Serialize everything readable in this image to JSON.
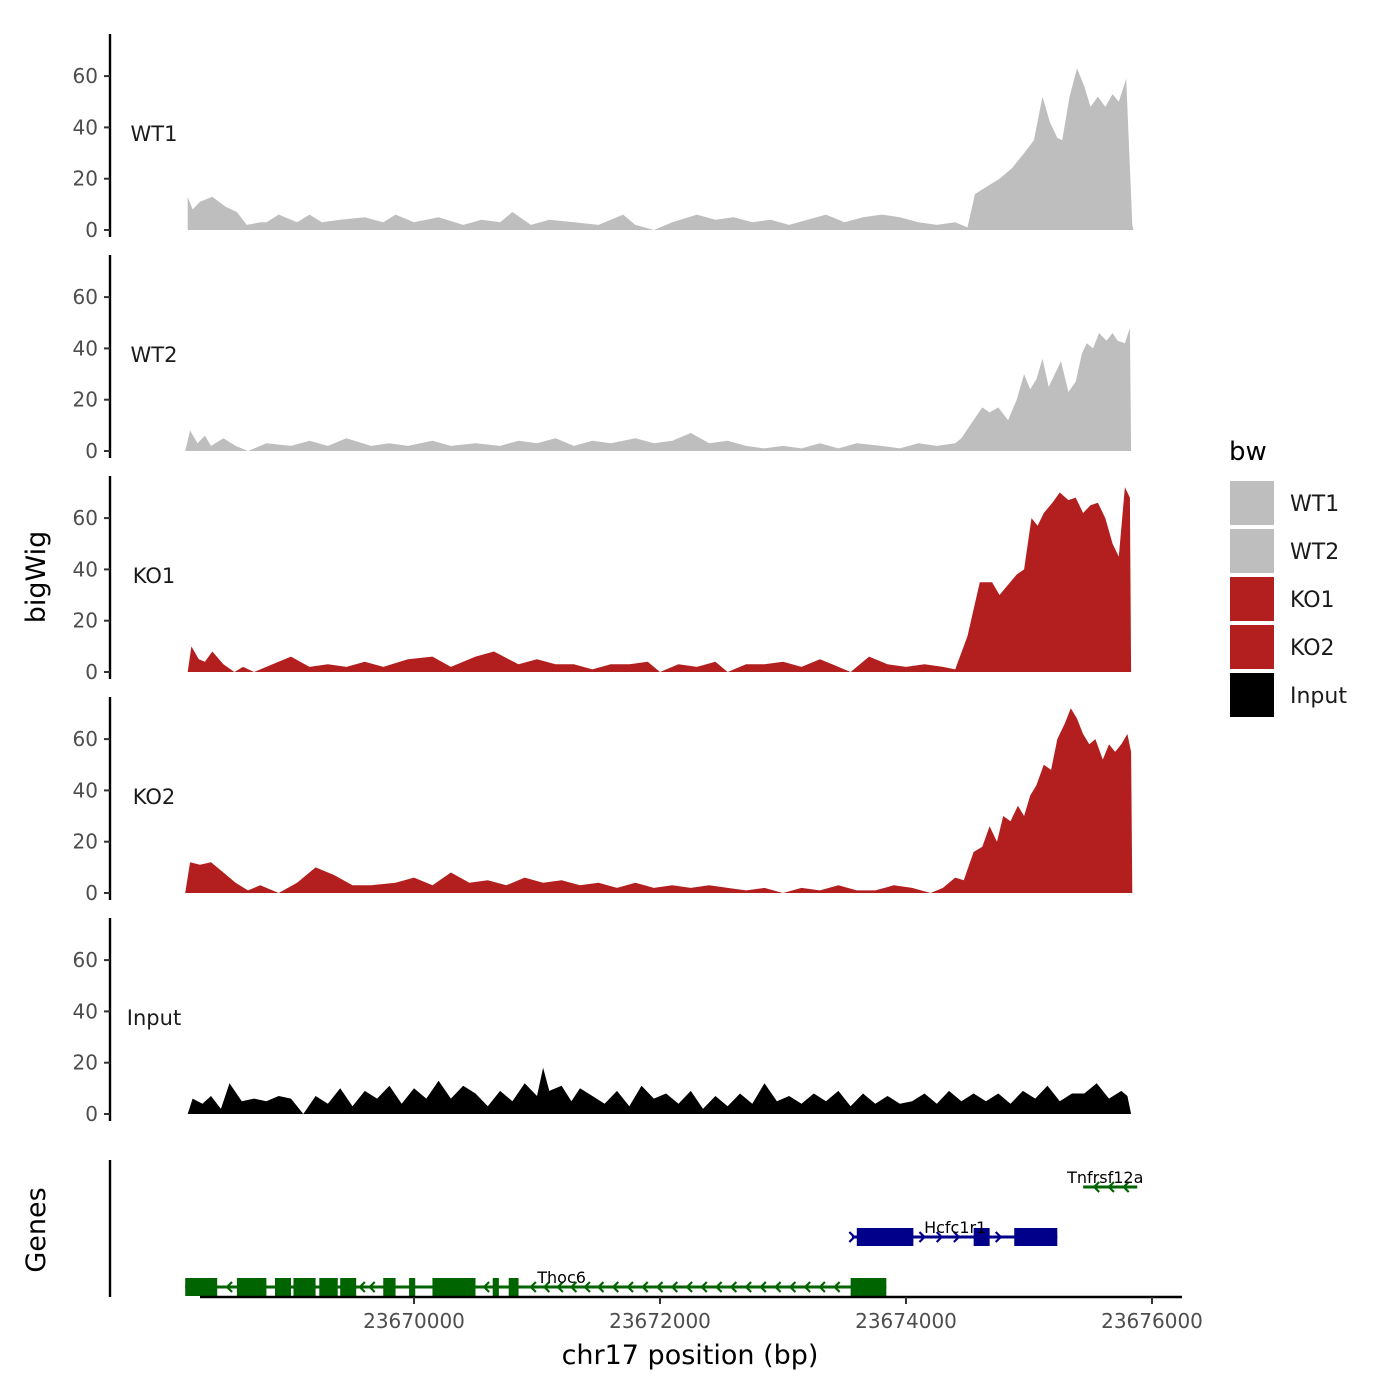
{
  "chart_data": {
    "type": "area",
    "chromosome": "chr17",
    "xlabel": "chr17 position (bp)",
    "ylabel": "bigWig",
    "genes_label": "Genes",
    "xlim": [
      23667800,
      23676250
    ],
    "x_ticks": [
      23670000,
      23672000,
      23674000,
      23676000
    ],
    "x_tick_labels": [
      "23670000",
      "23672000",
      "23674000",
      "23676000"
    ],
    "ylim": [
      0,
      77
    ],
    "y_ticks": [
      0,
      20,
      40,
      60
    ],
    "y_tick_labels": [
      "0",
      "20",
      "40",
      "60"
    ],
    "tracks": [
      {
        "name": "WT1",
        "color": "#BEBEBE",
        "x": [
          23668160,
          23668200,
          23668260,
          23668360,
          23668470,
          23668560,
          23668640,
          23668750,
          23668800,
          23668900,
          23669050,
          23669150,
          23669250,
          23669400,
          23669600,
          23669750,
          23669850,
          23670000,
          23670200,
          23670400,
          23670550,
          23670700,
          23670800,
          23670950,
          23671100,
          23671300,
          23671500,
          23671700,
          23671800,
          23671950,
          23672100,
          23672300,
          23672450,
          23672600,
          23672750,
          23672900,
          23673050,
          23673200,
          23673350,
          23673500,
          23673650,
          23673800,
          23673950,
          23674100,
          23674250,
          23674400,
          23674450,
          23674500,
          23674560,
          23674660,
          23674760,
          23674860,
          23674960,
          23675040,
          23675110,
          23675170,
          23675230,
          23675270,
          23675330,
          23675390,
          23675450,
          23675500,
          23675560,
          23675620,
          23675680,
          23675730,
          23675790,
          23675840,
          23675850
        ],
        "y": [
          13,
          8,
          11,
          13,
          9,
          7,
          2,
          3,
          3,
          6,
          3,
          6,
          3,
          4,
          5,
          3,
          6,
          3,
          5,
          2,
          4,
          3,
          7,
          2,
          4,
          3,
          2,
          6,
          2,
          0,
          3,
          6,
          4,
          5,
          3,
          4,
          2,
          4,
          6,
          3,
          5,
          6,
          5,
          3,
          2,
          3,
          2,
          1,
          14,
          17,
          20,
          24,
          30,
          35,
          52,
          42,
          36,
          35,
          52,
          63,
          56,
          48,
          52,
          48,
          53,
          50,
          59,
          2,
          0
        ]
      },
      {
        "name": "WT2",
        "color": "#BEBEBE",
        "x": [
          23668140,
          23668180,
          23668240,
          23668300,
          23668350,
          23668450,
          23668550,
          23668650,
          23668800,
          23669000,
          23669150,
          23669300,
          23669450,
          23669650,
          23669800,
          23669950,
          23670150,
          23670300,
          23670500,
          23670700,
          23670850,
          23671000,
          23671150,
          23671300,
          23671450,
          23671600,
          23671800,
          23671950,
          23672100,
          23672250,
          23672400,
          23672550,
          23672700,
          23672850,
          23673000,
          23673150,
          23673300,
          23673450,
          23673600,
          23673800,
          23673950,
          23674100,
          23674250,
          23674400,
          23674450,
          23674520,
          23674620,
          23674680,
          23674750,
          23674830,
          23674900,
          23674960,
          23675010,
          23675060,
          23675110,
          23675160,
          23675210,
          23675260,
          23675320,
          23675380,
          23675430,
          23675470,
          23675520,
          23675570,
          23675630,
          23675680,
          23675720,
          23675780,
          23675820,
          23675830
        ],
        "y": [
          0,
          8,
          3,
          6,
          2,
          5,
          2,
          0,
          3,
          2,
          4,
          2,
          5,
          2,
          3,
          2,
          4,
          2,
          3,
          2,
          4,
          3,
          5,
          2,
          4,
          3,
          5,
          3,
          4,
          7,
          3,
          4,
          2,
          1,
          2,
          1,
          3,
          1,
          3,
          2,
          1,
          3,
          2,
          3,
          5,
          10,
          17,
          15,
          17,
          12,
          20,
          30,
          24,
          28,
          36,
          25,
          30,
          35,
          23,
          27,
          38,
          42,
          40,
          46,
          43,
          46,
          43,
          42,
          48,
          0
        ]
      },
      {
        "name": "KO1",
        "color": "#B31E1E",
        "x": [
          23668160,
          23668190,
          23668250,
          23668300,
          23668360,
          23668450,
          23668540,
          23668610,
          23668700,
          23668850,
          23669000,
          23669150,
          23669300,
          23669450,
          23669600,
          23669750,
          23669950,
          23670150,
          23670300,
          23670500,
          23670650,
          23670850,
          23671000,
          23671150,
          23671300,
          23671450,
          23671600,
          23671750,
          23671900,
          23672000,
          23672150,
          23672300,
          23672450,
          23672550,
          23672700,
          23672850,
          23673000,
          23673150,
          23673300,
          23673400,
          23673550,
          23673700,
          23673850,
          23674000,
          23674150,
          23674300,
          23674400,
          23674500,
          23674600,
          23674700,
          23674760,
          23674830,
          23674900,
          23674960,
          23675020,
          23675070,
          23675120,
          23675190,
          23675250,
          23675320,
          23675380,
          23675440,
          23675500,
          23675560,
          23675620,
          23675680,
          23675730,
          23675780,
          23675820,
          23675830
        ],
        "y": [
          0,
          10,
          5,
          4,
          8,
          3,
          0,
          2,
          0,
          3,
          6,
          2,
          3,
          2,
          4,
          2,
          5,
          6,
          2,
          6,
          8,
          3,
          5,
          3,
          3,
          1,
          3,
          3,
          4,
          0,
          3,
          2,
          4,
          0,
          3,
          3,
          4,
          2,
          5,
          3,
          0,
          6,
          3,
          2,
          3,
          2,
          1,
          14,
          35,
          35,
          30,
          34,
          38,
          40,
          60,
          57,
          62,
          66,
          70,
          67,
          68,
          62,
          65,
          66,
          60,
          50,
          45,
          72,
          68,
          0
        ]
      },
      {
        "name": "KO2",
        "color": "#B31E1E",
        "x": [
          23668140,
          23668180,
          23668260,
          23668350,
          23668450,
          23668550,
          23668650,
          23668750,
          23668900,
          23669050,
          23669200,
          23669350,
          23669500,
          23669650,
          23669850,
          23670000,
          23670150,
          23670300,
          23670450,
          23670600,
          23670750,
          23670900,
          23671050,
          23671200,
          23671350,
          23671500,
          23671650,
          23671800,
          23671950,
          23672100,
          23672250,
          23672400,
          23672550,
          23672700,
          23672850,
          23673000,
          23673150,
          23673300,
          23673450,
          23673600,
          23673750,
          23673900,
          23674050,
          23674200,
          23674300,
          23674400,
          23674470,
          23674550,
          23674620,
          23674680,
          23674740,
          23674790,
          23674850,
          23674910,
          23674960,
          23675010,
          23675060,
          23675120,
          23675180,
          23675230,
          23675290,
          23675340,
          23675390,
          23675440,
          23675490,
          23675540,
          23675600,
          23675650,
          23675700,
          23675750,
          23675800,
          23675830,
          23675840
        ],
        "y": [
          0,
          12,
          11,
          12,
          8,
          4,
          1,
          3,
          0,
          4,
          10,
          7,
          3,
          3,
          4,
          6,
          3,
          8,
          4,
          5,
          3,
          6,
          4,
          5,
          3,
          4,
          2,
          4,
          2,
          3,
          2,
          3,
          2,
          1,
          2,
          0,
          2,
          1,
          3,
          1,
          1,
          3,
          2,
          0,
          2,
          6,
          5,
          16,
          18,
          26,
          20,
          30,
          28,
          34,
          30,
          38,
          42,
          50,
          48,
          60,
          66,
          72,
          68,
          62,
          58,
          60,
          52,
          58,
          55,
          58,
          62,
          55,
          0
        ]
      },
      {
        "name": "Input",
        "color": "#000000",
        "x": [
          23668160,
          23668200,
          23668280,
          23668350,
          23668430,
          23668500,
          23668600,
          23668700,
          23668800,
          23668900,
          23669000,
          23669100,
          23669200,
          23669300,
          23669400,
          23669500,
          23669600,
          23669700,
          23669800,
          23669900,
          23670000,
          23670100,
          23670200,
          23670300,
          23670400,
          23670500,
          23670600,
          23670700,
          23670800,
          23670900,
          23671000,
          23671050,
          23671100,
          23671200,
          23671280,
          23671350,
          23671450,
          23671550,
          23671650,
          23671750,
          23671850,
          23671950,
          23672050,
          23672150,
          23672250,
          23672350,
          23672450,
          23672550,
          23672650,
          23672750,
          23672850,
          23672950,
          23673050,
          23673150,
          23673250,
          23673350,
          23673450,
          23673550,
          23673650,
          23673750,
          23673850,
          23673950,
          23674050,
          23674150,
          23674250,
          23674350,
          23674450,
          23674550,
          23674650,
          23674750,
          23674850,
          23674950,
          23675050,
          23675150,
          23675250,
          23675350,
          23675450,
          23675550,
          23675650,
          23675750,
          23675800,
          23675830
        ],
        "y": [
          0,
          6,
          4,
          7,
          2,
          12,
          5,
          6,
          5,
          7,
          6,
          0,
          7,
          4,
          10,
          3,
          9,
          6,
          11,
          4,
          10,
          6,
          13,
          6,
          11,
          8,
          3,
          9,
          5,
          12,
          7,
          18,
          9,
          11,
          5,
          10,
          7,
          4,
          9,
          3,
          11,
          6,
          8,
          4,
          9,
          2,
          7,
          3,
          8,
          4,
          12,
          5,
          7,
          4,
          8,
          5,
          9,
          3,
          8,
          4,
          7,
          4,
          5,
          8,
          4,
          9,
          5,
          8,
          5,
          8,
          4,
          9,
          6,
          11,
          5,
          8,
          8,
          12,
          6,
          9,
          7,
          0
        ]
      }
    ],
    "genes": [
      {
        "name": "Thoc6",
        "strand": "-",
        "color": "#006400",
        "row": 0,
        "start": 23668140,
        "end": 23673840,
        "label_x": 23671200,
        "exons": [
          [
            23668140,
            23668400
          ],
          [
            23668560,
            23668800
          ],
          [
            23668870,
            23669000
          ],
          [
            23669020,
            23669200
          ],
          [
            23669230,
            23669380
          ],
          [
            23669400,
            23669530
          ],
          [
            23669750,
            23669850
          ],
          [
            23669960,
            23670010
          ],
          [
            23670150,
            23670500
          ],
          [
            23670640,
            23670690
          ],
          [
            23670770,
            23670850
          ],
          [
            23673550,
            23673840
          ]
        ],
        "arrows": [
          23668480,
          23668950,
          23669560,
          23669640,
          23670570,
          23670950,
          23671060,
          23671170,
          23671280,
          23671390,
          23671500,
          23671620,
          23671740,
          23671860,
          23671980,
          23672100,
          23672220,
          23672340,
          23672460,
          23672580,
          23672700,
          23672820,
          23672940,
          23673060,
          23673180,
          23673300,
          23673420
        ]
      },
      {
        "name": "Hcfc1r1",
        "strand": "+",
        "color": "#00008B",
        "row": 1,
        "start": 23673560,
        "end": 23675230,
        "label_x": 23674400,
        "exons": [
          [
            23673600,
            23674060
          ],
          [
            23674550,
            23674680
          ],
          [
            23674880,
            23675230
          ]
        ],
        "arrows": [
          23673580,
          23674150,
          23674290,
          23674430,
          23674770
        ]
      },
      {
        "name": "Tnfrsf12a",
        "strand": "-",
        "color": "#006400",
        "row": 2,
        "start": 23675440,
        "end": 23675880,
        "label_x": 23675620,
        "exons": [],
        "arrows": [
          23675530,
          23675650,
          23675770
        ]
      }
    ],
    "legend": {
      "title": "bw",
      "entries": [
        "WT1",
        "WT2",
        "KO1",
        "KO2",
        "Input"
      ]
    }
  }
}
